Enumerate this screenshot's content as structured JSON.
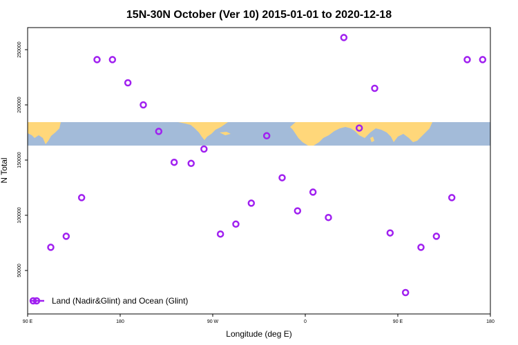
{
  "chart_data": {
    "type": "scatter",
    "title": "15N-30N October (Ver 10)   2015-01-01 to 2020-12-18",
    "xlabel": "Longitude (deg E)",
    "ylabel": "N Total",
    "xlim": [
      60,
      510
    ],
    "ylim": [
      25000,
      280000
    ],
    "x_ticks": [
      {
        "value": 90,
        "label": "90 E"
      },
      {
        "value": 180,
        "label": "180"
      },
      {
        "value": 270,
        "label": "90 W"
      },
      {
        "value": 360,
        "label": "0"
      },
      {
        "value": 450,
        "label": "90 E"
      },
      {
        "value": 540,
        "label": "180"
      }
    ],
    "y_ticks": [
      {
        "value": 50000,
        "label": "50000"
      },
      {
        "value": 100000,
        "label": "100000"
      },
      {
        "value": 150000,
        "label": "150000"
      },
      {
        "value": 200000,
        "label": "200000"
      },
      {
        "value": 250000,
        "label": "250000"
      }
    ],
    "grid": false,
    "legend_position": "bottom-left",
    "series": [
      {
        "name": "Land (Nadir&Glint) and Ocean (Glint)",
        "color": "#a020f0",
        "x": [
          112.5,
          127.5,
          142.5,
          157.5,
          172.5,
          187.5,
          202.5,
          217.5,
          232.5,
          249,
          261.5,
          277.5,
          292.5,
          307.5,
          322.5,
          337.5,
          352.5,
          367.5,
          382.5,
          397.5,
          412.5,
          427.5,
          442.5,
          457.5,
          472.5,
          487.5,
          502.5,
          517.5,
          532.5,
          546.5
        ],
        "y": [
          71000,
          81000,
          116000,
          241000,
          241000,
          220000,
          200000,
          176000,
          148000,
          147000,
          160000,
          83000,
          92000,
          111000,
          172000,
          134000,
          104000,
          121000,
          98000,
          261000,
          179000,
          215000,
          84000,
          30000,
          71000,
          81000,
          116000,
          241000,
          241000,
          220000
        ],
        "note_visible_range": "points outside xlim are clipped by the plot frame"
      }
    ]
  },
  "map_band": {
    "ocean_color": "#a3bbd9",
    "land_color": "#ffd77a",
    "y_range": [
      125000,
      150000
    ]
  }
}
